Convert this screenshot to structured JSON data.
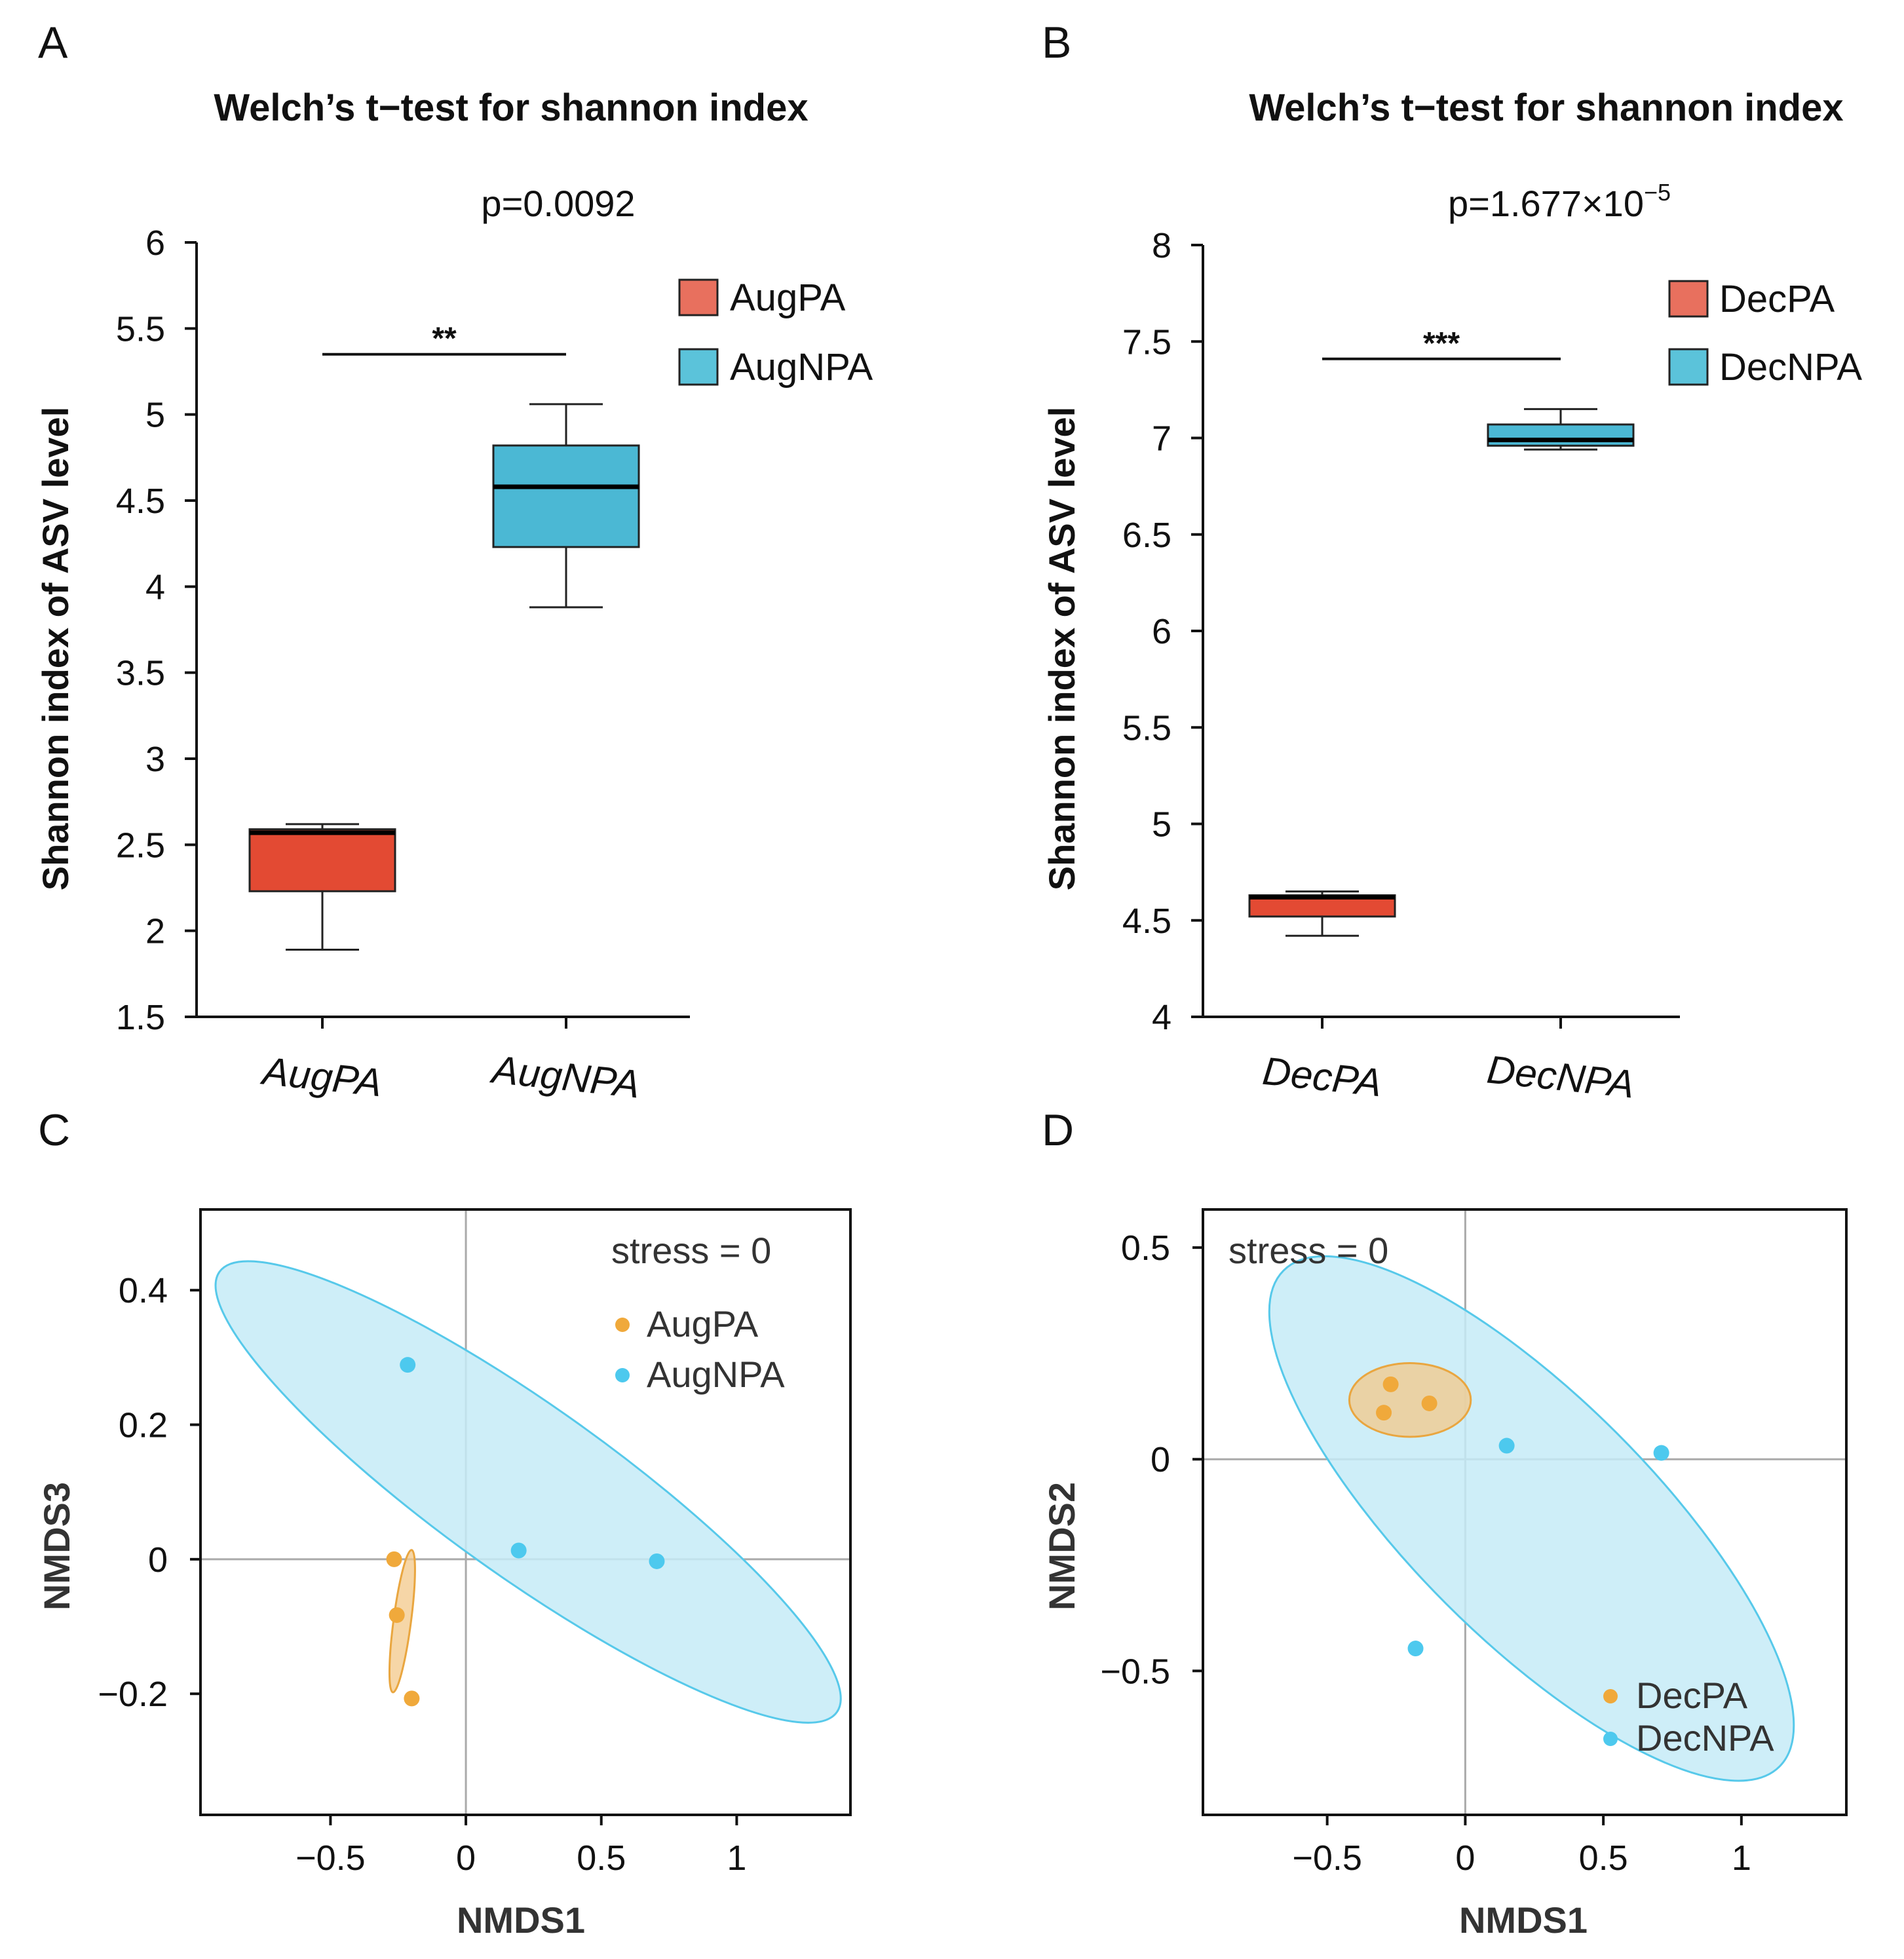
{
  "colors": {
    "pa_box": "#E34A33",
    "npa_box": "#4BB8D4",
    "pa_legend": "#E8705E",
    "npa_legend": "#5BC3DA",
    "pa_point": "#F0A93B",
    "npa_point": "#4DC9EE",
    "pa_ellipse_fill": "#F3C88A",
    "npa_ellipse_fill": "#C6EBF7",
    "pa_ellipse_stroke": "#E9A640",
    "npa_ellipse_stroke": "#57C9EA"
  },
  "panels": {
    "A": {
      "letter": "A",
      "title": "Welch’s t−test for shannon index",
      "pvalue": "p=0.0092"
    },
    "B": {
      "letter": "B",
      "title": "Welch’s t−test for shannon index",
      "pvalue_prefix": "p=1.677",
      "pvalue_times": "×",
      "pvalue_base": "10",
      "pvalue_exp": "−5"
    },
    "C": {
      "letter": "C",
      "stress": "stress = 0"
    },
    "D": {
      "letter": "D",
      "stress": "stress = 0"
    }
  },
  "chart_data": [
    {
      "id": "A",
      "type": "box",
      "title": "Welch’s t−test for shannon index",
      "ylabel": "Shannon index of ASV level",
      "ylim": [
        1.5,
        6
      ],
      "yticks": [
        1.5,
        2,
        2.5,
        3,
        3.5,
        4,
        4.5,
        5,
        5.5,
        6
      ],
      "ytick_labels": [
        "1.5",
        "2",
        "2.5",
        "3",
        "3.5",
        "4",
        "4.5",
        "5",
        "5.5",
        "6"
      ],
      "categories": [
        "AugPA",
        "AugNPA"
      ],
      "boxes": [
        {
          "name": "AugPA",
          "min": 1.89,
          "q1": 2.23,
          "median": 2.57,
          "q3": 2.59,
          "max": 2.62
        },
        {
          "name": "AugNPA",
          "min": 3.88,
          "q1": 4.23,
          "median": 4.58,
          "q3": 4.82,
          "max": 5.06
        }
      ],
      "legend": [
        "AugPA",
        "AugNPA"
      ],
      "significance": "**",
      "sig_y": 5.35,
      "pvalue": "p=0.0092"
    },
    {
      "id": "B",
      "type": "box",
      "title": "Welch’s t−test for shannon index",
      "ylabel": "Shannon index of ASV level",
      "ylim": [
        4,
        8
      ],
      "yticks": [
        4,
        4.5,
        5,
        5.5,
        6,
        6.5,
        7,
        7.5,
        8
      ],
      "ytick_labels": [
        "4",
        "4.5",
        "5",
        "5.5",
        "6",
        "6.5",
        "7",
        "7.5",
        "8"
      ],
      "categories": [
        "DecPA",
        "DecNPA"
      ],
      "boxes": [
        {
          "name": "DecPA",
          "min": 4.42,
          "q1": 4.52,
          "median": 4.62,
          "q3": 4.63,
          "max": 4.65
        },
        {
          "name": "DecNPA",
          "min": 6.94,
          "q1": 6.96,
          "median": 6.99,
          "q3": 7.07,
          "max": 7.15
        }
      ],
      "legend": [
        "DecPA",
        "DecNPA"
      ],
      "significance": "***",
      "sig_y": 7.41,
      "pvalue": "p=1.677×10−5"
    },
    {
      "id": "C",
      "type": "scatter",
      "xlabel": "NMDS1",
      "ylabel": "NMDS3",
      "xlim": [
        -0.98,
        1.42
      ],
      "ylim": [
        -0.38,
        0.52
      ],
      "xticks": [
        -0.5,
        0,
        0.5,
        1
      ],
      "xtick_labels": [
        "−0.5",
        "0",
        "0.5",
        "1"
      ],
      "yticks": [
        -0.2,
        0,
        0.2,
        0.4
      ],
      "ytick_labels": [
        "−0.2",
        "0",
        "0.2",
        "0.4"
      ],
      "stress": "stress = 0",
      "legend": [
        "AugPA",
        "AugNPA"
      ],
      "series": [
        {
          "name": "AugPA",
          "points": [
            [
              -0.265,
              0.0
            ],
            [
              -0.255,
              -0.083
            ],
            [
              -0.2,
              -0.207
            ]
          ],
          "ellipse": {
            "cx": -0.235,
            "cy": -0.092,
            "rx": 0.265,
            "ry": 0.013,
            "angle_deg": -82.5
          }
        },
        {
          "name": "AugNPA",
          "points": [
            [
              -0.215,
              0.289
            ],
            [
              0.195,
              0.013
            ],
            [
              0.705,
              -0.003
            ]
          ],
          "ellipse": {
            "cx": 0.23,
            "cy": 0.1,
            "rx": 1.4,
            "ry": 0.126,
            "angle_deg": 35.5
          }
        }
      ]
    },
    {
      "id": "D",
      "type": "scatter",
      "xlabel": "NMDS1",
      "ylabel": "NMDS2",
      "xlim": [
        -0.95,
        1.38
      ],
      "ylim": [
        -0.84,
        0.59
      ],
      "xticks": [
        -0.5,
        0,
        0.5,
        1
      ],
      "xtick_labels": [
        "−0.5",
        "0",
        "0.5",
        "1"
      ],
      "yticks": [
        -0.5,
        0,
        0.5
      ],
      "ytick_labels": [
        "−0.5",
        "0",
        "0.5"
      ],
      "stress": "stress = 0",
      "legend": [
        "DecPA",
        "DecNPA"
      ],
      "series": [
        {
          "name": "DecPA",
          "points": [
            [
              -0.27,
              0.177
            ],
            [
              -0.295,
              0.11
            ],
            [
              -0.13,
              0.132
            ]
          ],
          "ellipse": {
            "cx": -0.2,
            "cy": 0.14,
            "rx": 0.22,
            "ry": 0.087,
            "angle_deg": 0
          }
        },
        {
          "name": "DecNPA",
          "points": [
            [
              0.15,
              0.032
            ],
            [
              0.71,
              0.015
            ],
            [
              -0.18,
              -0.447
            ]
          ],
          "ellipse": {
            "cx": 0.24,
            "cy": -0.14,
            "rx": 1.27,
            "ry": 0.285,
            "angle_deg": 45
          }
        }
      ]
    }
  ]
}
